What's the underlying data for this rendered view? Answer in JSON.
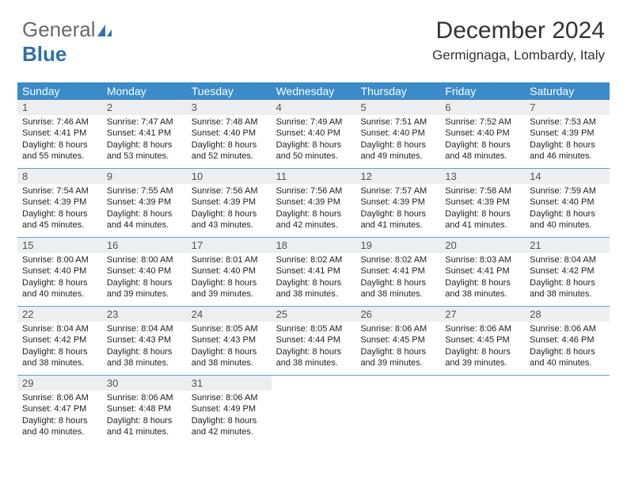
{
  "brand": {
    "part1": "General",
    "part2": "Blue"
  },
  "title": "December 2024",
  "location": "Germignaga, Lombardy, Italy",
  "colors": {
    "header_bg": "#3b8bc8",
    "header_text": "#ffffff",
    "daynum_bg": "#eceeef",
    "daynum_text": "#545454",
    "week_divider": "#5fa0cc",
    "body_text": "#222222",
    "background": "#ffffff"
  },
  "typography": {
    "title_fontsize": 30,
    "location_fontsize": 17,
    "header_fontsize": 14,
    "daynum_fontsize": 13,
    "body_fontsize": 11
  },
  "day_headers": [
    "Sunday",
    "Monday",
    "Tuesday",
    "Wednesday",
    "Thursday",
    "Friday",
    "Saturday"
  ],
  "weeks": [
    [
      {
        "n": "1",
        "sr": "Sunrise: 7:46 AM",
        "ss": "Sunset: 4:41 PM",
        "d1": "Daylight: 8 hours",
        "d2": "and 55 minutes."
      },
      {
        "n": "2",
        "sr": "Sunrise: 7:47 AM",
        "ss": "Sunset: 4:41 PM",
        "d1": "Daylight: 8 hours",
        "d2": "and 53 minutes."
      },
      {
        "n": "3",
        "sr": "Sunrise: 7:48 AM",
        "ss": "Sunset: 4:40 PM",
        "d1": "Daylight: 8 hours",
        "d2": "and 52 minutes."
      },
      {
        "n": "4",
        "sr": "Sunrise: 7:49 AM",
        "ss": "Sunset: 4:40 PM",
        "d1": "Daylight: 8 hours",
        "d2": "and 50 minutes."
      },
      {
        "n": "5",
        "sr": "Sunrise: 7:51 AM",
        "ss": "Sunset: 4:40 PM",
        "d1": "Daylight: 8 hours",
        "d2": "and 49 minutes."
      },
      {
        "n": "6",
        "sr": "Sunrise: 7:52 AM",
        "ss": "Sunset: 4:40 PM",
        "d1": "Daylight: 8 hours",
        "d2": "and 48 minutes."
      },
      {
        "n": "7",
        "sr": "Sunrise: 7:53 AM",
        "ss": "Sunset: 4:39 PM",
        "d1": "Daylight: 8 hours",
        "d2": "and 46 minutes."
      }
    ],
    [
      {
        "n": "8",
        "sr": "Sunrise: 7:54 AM",
        "ss": "Sunset: 4:39 PM",
        "d1": "Daylight: 8 hours",
        "d2": "and 45 minutes."
      },
      {
        "n": "9",
        "sr": "Sunrise: 7:55 AM",
        "ss": "Sunset: 4:39 PM",
        "d1": "Daylight: 8 hours",
        "d2": "and 44 minutes."
      },
      {
        "n": "10",
        "sr": "Sunrise: 7:56 AM",
        "ss": "Sunset: 4:39 PM",
        "d1": "Daylight: 8 hours",
        "d2": "and 43 minutes."
      },
      {
        "n": "11",
        "sr": "Sunrise: 7:56 AM",
        "ss": "Sunset: 4:39 PM",
        "d1": "Daylight: 8 hours",
        "d2": "and 42 minutes."
      },
      {
        "n": "12",
        "sr": "Sunrise: 7:57 AM",
        "ss": "Sunset: 4:39 PM",
        "d1": "Daylight: 8 hours",
        "d2": "and 41 minutes."
      },
      {
        "n": "13",
        "sr": "Sunrise: 7:58 AM",
        "ss": "Sunset: 4:39 PM",
        "d1": "Daylight: 8 hours",
        "d2": "and 41 minutes."
      },
      {
        "n": "14",
        "sr": "Sunrise: 7:59 AM",
        "ss": "Sunset: 4:40 PM",
        "d1": "Daylight: 8 hours",
        "d2": "and 40 minutes."
      }
    ],
    [
      {
        "n": "15",
        "sr": "Sunrise: 8:00 AM",
        "ss": "Sunset: 4:40 PM",
        "d1": "Daylight: 8 hours",
        "d2": "and 40 minutes."
      },
      {
        "n": "16",
        "sr": "Sunrise: 8:00 AM",
        "ss": "Sunset: 4:40 PM",
        "d1": "Daylight: 8 hours",
        "d2": "and 39 minutes."
      },
      {
        "n": "17",
        "sr": "Sunrise: 8:01 AM",
        "ss": "Sunset: 4:40 PM",
        "d1": "Daylight: 8 hours",
        "d2": "and 39 minutes."
      },
      {
        "n": "18",
        "sr": "Sunrise: 8:02 AM",
        "ss": "Sunset: 4:41 PM",
        "d1": "Daylight: 8 hours",
        "d2": "and 38 minutes."
      },
      {
        "n": "19",
        "sr": "Sunrise: 8:02 AM",
        "ss": "Sunset: 4:41 PM",
        "d1": "Daylight: 8 hours",
        "d2": "and 38 minutes."
      },
      {
        "n": "20",
        "sr": "Sunrise: 8:03 AM",
        "ss": "Sunset: 4:41 PM",
        "d1": "Daylight: 8 hours",
        "d2": "and 38 minutes."
      },
      {
        "n": "21",
        "sr": "Sunrise: 8:04 AM",
        "ss": "Sunset: 4:42 PM",
        "d1": "Daylight: 8 hours",
        "d2": "and 38 minutes."
      }
    ],
    [
      {
        "n": "22",
        "sr": "Sunrise: 8:04 AM",
        "ss": "Sunset: 4:42 PM",
        "d1": "Daylight: 8 hours",
        "d2": "and 38 minutes."
      },
      {
        "n": "23",
        "sr": "Sunrise: 8:04 AM",
        "ss": "Sunset: 4:43 PM",
        "d1": "Daylight: 8 hours",
        "d2": "and 38 minutes."
      },
      {
        "n": "24",
        "sr": "Sunrise: 8:05 AM",
        "ss": "Sunset: 4:43 PM",
        "d1": "Daylight: 8 hours",
        "d2": "and 38 minutes."
      },
      {
        "n": "25",
        "sr": "Sunrise: 8:05 AM",
        "ss": "Sunset: 4:44 PM",
        "d1": "Daylight: 8 hours",
        "d2": "and 38 minutes."
      },
      {
        "n": "26",
        "sr": "Sunrise: 8:06 AM",
        "ss": "Sunset: 4:45 PM",
        "d1": "Daylight: 8 hours",
        "d2": "and 39 minutes."
      },
      {
        "n": "27",
        "sr": "Sunrise: 8:06 AM",
        "ss": "Sunset: 4:45 PM",
        "d1": "Daylight: 8 hours",
        "d2": "and 39 minutes."
      },
      {
        "n": "28",
        "sr": "Sunrise: 8:06 AM",
        "ss": "Sunset: 4:46 PM",
        "d1": "Daylight: 8 hours",
        "d2": "and 40 minutes."
      }
    ],
    [
      {
        "n": "29",
        "sr": "Sunrise: 8:06 AM",
        "ss": "Sunset: 4:47 PM",
        "d1": "Daylight: 8 hours",
        "d2": "and 40 minutes."
      },
      {
        "n": "30",
        "sr": "Sunrise: 8:06 AM",
        "ss": "Sunset: 4:48 PM",
        "d1": "Daylight: 8 hours",
        "d2": "and 41 minutes."
      },
      {
        "n": "31",
        "sr": "Sunrise: 8:06 AM",
        "ss": "Sunset: 4:49 PM",
        "d1": "Daylight: 8 hours",
        "d2": "and 42 minutes."
      },
      null,
      null,
      null,
      null
    ]
  ]
}
